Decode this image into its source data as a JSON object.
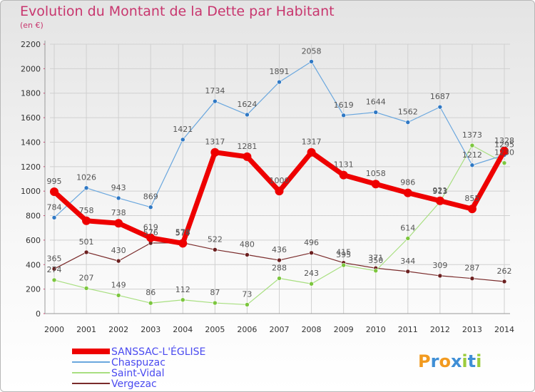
{
  "title": "Evolution du Montant de la Dette par Habitant",
  "unit": "(en €)",
  "logo_text": "Proxiti",
  "chart_data": {
    "type": "line",
    "title": "Evolution du Montant de la Dette par Habitant",
    "subtitle": "(en €)",
    "categories": [
      "2000",
      "2001",
      "2002",
      "2003",
      "2004",
      "2005",
      "2006",
      "2007",
      "2008",
      "2009",
      "2010",
      "2011",
      "2012",
      "2013",
      "2014"
    ],
    "ylim": [
      0,
      2200
    ],
    "yticks": [
      0,
      200,
      400,
      600,
      800,
      1000,
      1200,
      1400,
      1600,
      1800,
      2000,
      2200
    ],
    "grid": true,
    "legend_position": "bottom-left",
    "series": [
      {
        "name": "SANSSAC-L'ÉGLISE",
        "color": "#ee0000",
        "width": 7,
        "marker_color": "#ee0000",
        "values": [
          995,
          758,
          738,
          619,
          574,
          1317,
          1281,
          1000,
          1317,
          1131,
          1058,
          986,
          921,
          855,
          1328
        ]
      },
      {
        "name": "Chaspuzac",
        "color": "#6aa7de",
        "width": 1.2,
        "marker_color": "#2f78c4",
        "values": [
          784,
          1026,
          943,
          869,
          1421,
          1734,
          1624,
          1891,
          2058,
          1619,
          1644,
          1562,
          1687,
          1212,
          1295
        ]
      },
      {
        "name": "Saint-Vidal",
        "color": "#a8df80",
        "width": 1.2,
        "marker_color": "#7cc63e",
        "values": [
          274,
          207,
          149,
          86,
          112,
          87,
          73,
          288,
          243,
          395,
          350,
          614,
          913,
          1373,
          1230
        ]
      },
      {
        "name": "Vergezac",
        "color": "#7a2b2b",
        "width": 1.2,
        "marker_color": "#6b1f1f",
        "values": [
          365,
          501,
          430,
          576,
          578,
          522,
          480,
          436,
          496,
          415,
          371,
          344,
          309,
          287,
          262
        ]
      }
    ]
  }
}
